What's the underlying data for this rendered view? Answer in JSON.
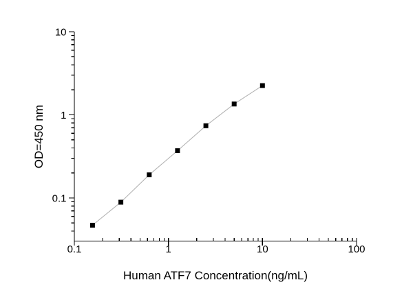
{
  "figure": {
    "background_color": "#ffffff"
  },
  "chart_data": {
    "type": "scatter",
    "xlabel": "Human ATF7 Concentration(ng/mL)",
    "ylabel": "OD=450 nm",
    "x_scale": "log",
    "y_scale": "log",
    "xlim": [
      0.1,
      100
    ],
    "ylim": [
      0.0303,
      10
    ],
    "grid": false,
    "x_ticks": {
      "values": [
        0.1,
        1,
        10,
        100
      ],
      "labels": [
        "0.1",
        "1",
        "10",
        "100"
      ]
    },
    "y_ticks": {
      "values": [
        0.1,
        1,
        10
      ],
      "labels": [
        "0.1",
        "1",
        "10"
      ]
    },
    "series": [
      {
        "x": [
          0.156,
          0.3125,
          0.625,
          1.25,
          2.5,
          5,
          10
        ],
        "y": [
          0.047,
          0.089,
          0.19,
          0.37,
          0.74,
          1.35,
          2.25
        ],
        "marker": "filled-square",
        "marker_size_px": 7,
        "marker_color": "#000000",
        "line_color": "#b3b3b3"
      }
    ],
    "axis_color": "#000000",
    "text_color": "#000000"
  }
}
